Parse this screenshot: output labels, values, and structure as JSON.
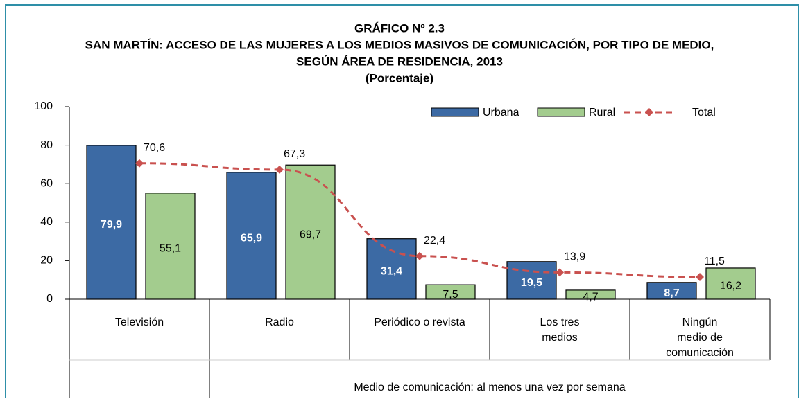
{
  "chart_data": {
    "type": "bar_line",
    "title": [
      "GRÁFICO Nº 2.3",
      "SAN MARTÍN: ACCESO DE LAS MUJERES A LOS MEDIOS MASIVOS DE COMUNICACIÓN, POR TIPO DE MEDIO,",
      "SEGÚN ÁREA DE RESIDENCIA, 2013",
      "(Porcentaje)"
    ],
    "categories": [
      [
        "Televisión"
      ],
      [
        "Radio"
      ],
      [
        "Periódico o revista"
      ],
      [
        "Los tres",
        "medios"
      ],
      [
        "Ningún",
        "medio de",
        "comunicación"
      ]
    ],
    "x_group_label": "Medio de comunicación: al menos una vez por semana",
    "series": [
      {
        "name": "Urbana",
        "type": "bar",
        "color": "#3c6aa4",
        "values": [
          79.9,
          65.9,
          31.4,
          19.5,
          8.7
        ],
        "value_labels": [
          "79,9",
          "65,9",
          "31,4",
          "19,5",
          "8,7"
        ]
      },
      {
        "name": "Rural",
        "type": "bar",
        "color": "#a3cc8e",
        "values": [
          55.1,
          69.7,
          7.5,
          4.7,
          16.2
        ],
        "value_labels": [
          "55,1",
          "69,7",
          "7,5",
          "4,7",
          "16,2"
        ]
      },
      {
        "name": "Total",
        "type": "line",
        "color": "#c9514f",
        "values": [
          70.6,
          67.3,
          22.4,
          13.9,
          11.5
        ],
        "value_labels": [
          "70,6",
          "67,3",
          "22,4",
          "13,9",
          "11,5"
        ]
      }
    ],
    "ylim": [
      0,
      100
    ],
    "yticks": [
      0,
      20,
      40,
      60,
      80,
      100
    ],
    "grid": false
  }
}
